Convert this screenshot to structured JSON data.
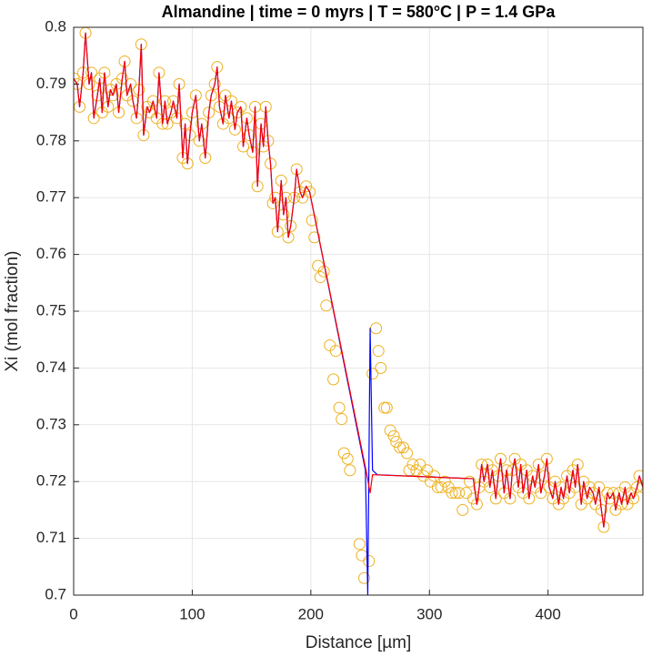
{
  "chart_data": {
    "type": "line",
    "title": "Almandine | time = 0 myrs | T = 580°C | P = 1.4 GPa",
    "xlabel": "Distance [µm]",
    "ylabel": "Xi (mol fraction)",
    "xlim": [
      0,
      480
    ],
    "xticks": [
      0,
      100,
      200,
      300,
      400
    ],
    "ylim": [
      0.7,
      0.8
    ],
    "yticks": [
      0.7,
      0.71,
      0.72,
      0.73,
      0.74,
      0.75,
      0.76,
      0.77,
      0.78,
      0.79,
      0.8
    ],
    "grid": true,
    "series": [
      {
        "style": "markers",
        "color": "#EDB120",
        "x": [
          0,
          3,
          5,
          8,
          10,
          13,
          15,
          17,
          20,
          22,
          24,
          26,
          29,
          31,
          33,
          36,
          38,
          41,
          43,
          45,
          48,
          50,
          53,
          55,
          57,
          59,
          62,
          64,
          67,
          70,
          72,
          75,
          77,
          79,
          82,
          84,
          87,
          89,
          92,
          94,
          96,
          98,
          100,
          103,
          106,
          108,
          111,
          114,
          116,
          119,
          121,
          123,
          126,
          128,
          131,
          133,
          136,
          138,
          141,
          143,
          146,
          148,
          151,
          153,
          155,
          158,
          160,
          162,
          164,
          166,
          168,
          170,
          172,
          175,
          177,
          179,
          181,
          183,
          186,
          188,
          191,
          193,
          196,
          199,
          201,
          203,
          206,
          208,
          211,
          213,
          216,
          219,
          221,
          224,
          226,
          228,
          231,
          233,
          241,
          243,
          245,
          249,
          252,
          255,
          257,
          259,
          262,
          264,
          267,
          270,
          272,
          275,
          278,
          281,
          283,
          286,
          289,
          292,
          295,
          298,
          301,
          304,
          307,
          310,
          313,
          316,
          319,
          322,
          325,
          328,
          331,
          334,
          337,
          340,
          342,
          344,
          346,
          349,
          351,
          353,
          356,
          358,
          360,
          363,
          365,
          368,
          370,
          372,
          375,
          377,
          379,
          382,
          384,
          387,
          389,
          392,
          394,
          397,
          399,
          401,
          404,
          406,
          409,
          411,
          413,
          416,
          418,
          421,
          423,
          425,
          428,
          430,
          433,
          435,
          438,
          440,
          443,
          445,
          447,
          450,
          452,
          455,
          457,
          460,
          462,
          465,
          467,
          470,
          472,
          475,
          477,
          480
        ],
        "values": [
          0.791,
          0.79,
          0.786,
          0.792,
          0.799,
          0.79,
          0.792,
          0.784,
          0.788,
          0.791,
          0.785,
          0.792,
          0.786,
          0.789,
          0.788,
          0.79,
          0.785,
          0.791,
          0.794,
          0.788,
          0.79,
          0.787,
          0.784,
          0.789,
          0.797,
          0.781,
          0.786,
          0.785,
          0.787,
          0.784,
          0.792,
          0.783,
          0.787,
          0.783,
          0.785,
          0.787,
          0.784,
          0.79,
          0.777,
          0.783,
          0.776,
          0.781,
          0.785,
          0.788,
          0.78,
          0.783,
          0.777,
          0.785,
          0.788,
          0.79,
          0.793,
          0.786,
          0.783,
          0.788,
          0.784,
          0.787,
          0.782,
          0.785,
          0.786,
          0.779,
          0.784,
          0.781,
          0.778,
          0.786,
          0.772,
          0.783,
          0.779,
          0.786,
          0.78,
          0.776,
          0.769,
          0.77,
          0.764,
          0.773,
          0.767,
          0.77,
          0.763,
          0.765,
          0.77,
          0.775,
          0.771,
          0.77,
          0.772,
          0.771,
          0.766,
          0.763,
          0.758,
          0.756,
          0.757,
          0.751,
          0.744,
          0.738,
          0.743,
          0.733,
          0.731,
          0.725,
          0.724,
          0.722,
          0.709,
          0.707,
          0.703,
          0.706,
          0.739,
          0.747,
          0.743,
          0.74,
          0.733,
          0.733,
          0.729,
          0.728,
          0.727,
          0.726,
          0.726,
          0.725,
          0.722,
          0.723,
          0.722,
          0.723,
          0.721,
          0.722,
          0.72,
          0.721,
          0.719,
          0.719,
          0.72,
          0.719,
          0.718,
          0.718,
          0.718,
          0.715,
          0.718,
          0.72,
          0.717,
          0.716,
          0.719,
          0.723,
          0.72,
          0.723,
          0.719,
          0.722,
          0.717,
          0.721,
          0.724,
          0.718,
          0.722,
          0.717,
          0.722,
          0.724,
          0.719,
          0.723,
          0.718,
          0.722,
          0.717,
          0.721,
          0.719,
          0.723,
          0.718,
          0.721,
          0.724,
          0.719,
          0.717,
          0.72,
          0.716,
          0.719,
          0.717,
          0.721,
          0.718,
          0.722,
          0.719,
          0.723,
          0.716,
          0.72,
          0.717,
          0.719,
          0.718,
          0.716,
          0.719,
          0.715,
          0.712,
          0.718,
          0.717,
          0.718,
          0.715,
          0.718,
          0.716,
          0.719,
          0.716,
          0.718,
          0.717,
          0.719,
          0.721,
          0.719
        ]
      },
      {
        "style": "line",
        "color": "#0000FF",
        "x": [
          0,
          3,
          5,
          8,
          10,
          13,
          15,
          17,
          20,
          22,
          24,
          26,
          29,
          31,
          33,
          36,
          38,
          41,
          43,
          45,
          48,
          50,
          53,
          55,
          57,
          59,
          62,
          64,
          67,
          70,
          72,
          75,
          77,
          79,
          82,
          84,
          87,
          89,
          92,
          94,
          96,
          98,
          100,
          103,
          106,
          108,
          111,
          114,
          116,
          119,
          121,
          123,
          126,
          128,
          131,
          133,
          136,
          138,
          141,
          143,
          146,
          148,
          151,
          153,
          155,
          158,
          160,
          162,
          164,
          166,
          168,
          170,
          172,
          175,
          177,
          179,
          181,
          183,
          186,
          188,
          191,
          193,
          196,
          199,
          246,
          248,
          250,
          252,
          256,
          337,
          340,
          342,
          344,
          346,
          349,
          351,
          353,
          356,
          358,
          360,
          363,
          365,
          368,
          370,
          372,
          375,
          377,
          379,
          382,
          384,
          387,
          389,
          392,
          394,
          397,
          399,
          401,
          404,
          406,
          409,
          411,
          413,
          416,
          418,
          421,
          423,
          425,
          428,
          430,
          433,
          435,
          438,
          440,
          443,
          445,
          447,
          450,
          452,
          455,
          457,
          460,
          462,
          465,
          467,
          470,
          472,
          475,
          477,
          480
        ],
        "values": [
          0.791,
          0.79,
          0.786,
          0.792,
          0.799,
          0.79,
          0.792,
          0.784,
          0.788,
          0.791,
          0.785,
          0.792,
          0.786,
          0.789,
          0.788,
          0.79,
          0.785,
          0.791,
          0.794,
          0.788,
          0.79,
          0.787,
          0.784,
          0.789,
          0.797,
          0.781,
          0.786,
          0.785,
          0.787,
          0.784,
          0.792,
          0.783,
          0.787,
          0.783,
          0.785,
          0.787,
          0.784,
          0.79,
          0.777,
          0.783,
          0.776,
          0.781,
          0.785,
          0.788,
          0.78,
          0.783,
          0.777,
          0.785,
          0.788,
          0.79,
          0.793,
          0.786,
          0.783,
          0.788,
          0.784,
          0.787,
          0.782,
          0.785,
          0.786,
          0.779,
          0.784,
          0.781,
          0.778,
          0.786,
          0.772,
          0.783,
          0.779,
          0.786,
          0.78,
          0.776,
          0.769,
          0.77,
          0.764,
          0.773,
          0.767,
          0.77,
          0.763,
          0.765,
          0.77,
          0.775,
          0.771,
          0.77,
          0.772,
          0.771,
          0.722,
          0.7,
          0.747,
          0.722,
          0.7212,
          0.7205,
          0.716,
          0.719,
          0.723,
          0.72,
          0.723,
          0.719,
          0.722,
          0.717,
          0.721,
          0.724,
          0.718,
          0.722,
          0.717,
          0.722,
          0.724,
          0.719,
          0.723,
          0.718,
          0.722,
          0.717,
          0.721,
          0.719,
          0.723,
          0.718,
          0.721,
          0.724,
          0.719,
          0.717,
          0.72,
          0.716,
          0.719,
          0.717,
          0.721,
          0.718,
          0.722,
          0.719,
          0.723,
          0.716,
          0.72,
          0.717,
          0.719,
          0.718,
          0.716,
          0.719,
          0.715,
          0.712,
          0.718,
          0.717,
          0.718,
          0.715,
          0.718,
          0.716,
          0.719,
          0.716,
          0.718,
          0.717,
          0.719,
          0.721,
          0.719
        ]
      },
      {
        "style": "line",
        "color": "#FF0000",
        "x": [
          0,
          3,
          5,
          8,
          10,
          13,
          15,
          17,
          20,
          22,
          24,
          26,
          29,
          31,
          33,
          36,
          38,
          41,
          43,
          45,
          48,
          50,
          53,
          55,
          57,
          59,
          62,
          64,
          67,
          70,
          72,
          75,
          77,
          79,
          82,
          84,
          87,
          89,
          92,
          94,
          96,
          98,
          100,
          103,
          106,
          108,
          111,
          114,
          116,
          119,
          121,
          123,
          126,
          128,
          131,
          133,
          136,
          138,
          141,
          143,
          146,
          148,
          151,
          153,
          155,
          158,
          160,
          162,
          164,
          166,
          168,
          170,
          172,
          175,
          177,
          179,
          181,
          183,
          186,
          188,
          191,
          193,
          196,
          199,
          247,
          250,
          252,
          337,
          340,
          342,
          344,
          346,
          349,
          351,
          353,
          356,
          358,
          360,
          363,
          365,
          368,
          370,
          372,
          375,
          377,
          379,
          382,
          384,
          387,
          389,
          392,
          394,
          397,
          399,
          401,
          404,
          406,
          409,
          411,
          413,
          416,
          418,
          421,
          423,
          425,
          428,
          430,
          433,
          435,
          438,
          440,
          443,
          445,
          447,
          450,
          452,
          455,
          457,
          460,
          462,
          465,
          467,
          470,
          472,
          475,
          477,
          480
        ],
        "values": [
          0.791,
          0.79,
          0.786,
          0.792,
          0.799,
          0.79,
          0.792,
          0.784,
          0.788,
          0.791,
          0.785,
          0.792,
          0.786,
          0.789,
          0.788,
          0.79,
          0.785,
          0.791,
          0.794,
          0.788,
          0.79,
          0.787,
          0.784,
          0.789,
          0.797,
          0.781,
          0.786,
          0.785,
          0.787,
          0.784,
          0.792,
          0.783,
          0.787,
          0.783,
          0.785,
          0.787,
          0.784,
          0.79,
          0.777,
          0.783,
          0.776,
          0.781,
          0.785,
          0.788,
          0.78,
          0.783,
          0.777,
          0.785,
          0.788,
          0.79,
          0.793,
          0.786,
          0.783,
          0.788,
          0.784,
          0.787,
          0.782,
          0.785,
          0.786,
          0.779,
          0.784,
          0.781,
          0.778,
          0.786,
          0.772,
          0.783,
          0.779,
          0.786,
          0.78,
          0.776,
          0.769,
          0.77,
          0.764,
          0.773,
          0.767,
          0.77,
          0.763,
          0.765,
          0.77,
          0.775,
          0.771,
          0.77,
          0.772,
          0.771,
          0.7215,
          0.718,
          0.7212,
          0.7205,
          0.716,
          0.719,
          0.723,
          0.72,
          0.723,
          0.719,
          0.722,
          0.717,
          0.721,
          0.724,
          0.718,
          0.722,
          0.717,
          0.722,
          0.724,
          0.719,
          0.723,
          0.718,
          0.722,
          0.717,
          0.721,
          0.719,
          0.723,
          0.718,
          0.721,
          0.724,
          0.719,
          0.717,
          0.72,
          0.716,
          0.719,
          0.717,
          0.721,
          0.718,
          0.722,
          0.719,
          0.723,
          0.716,
          0.72,
          0.717,
          0.719,
          0.718,
          0.716,
          0.719,
          0.715,
          0.712,
          0.718,
          0.717,
          0.718,
          0.715,
          0.718,
          0.716,
          0.719,
          0.716,
          0.718,
          0.717,
          0.719,
          0.721,
          0.719
        ]
      }
    ]
  }
}
